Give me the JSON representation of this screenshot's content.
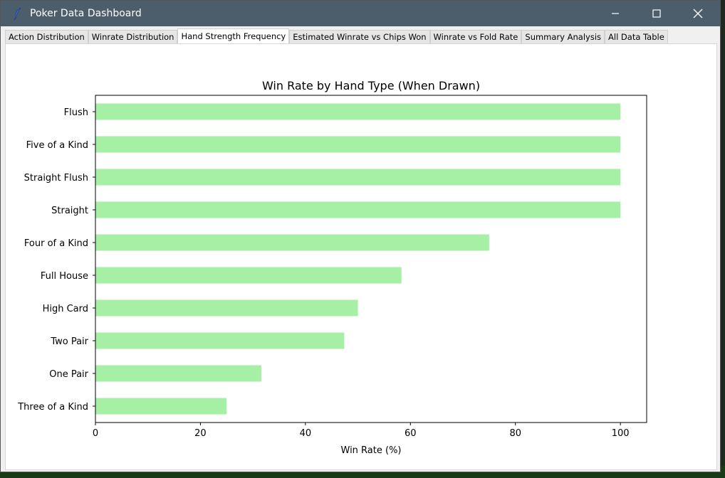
{
  "window": {
    "title": "Poker Data Dashboard",
    "icon": "feather-icon"
  },
  "tabs": [
    {
      "label": "Action Distribution",
      "active": false
    },
    {
      "label": "Winrate Distribution",
      "active": false
    },
    {
      "label": "Hand Strength Frequency",
      "active": true
    },
    {
      "label": "Estimated Winrate vs Chips Won",
      "active": false
    },
    {
      "label": "Winrate vs Fold Rate",
      "active": false
    },
    {
      "label": "Summary Analysis",
      "active": false
    },
    {
      "label": "All Data Table",
      "active": false
    }
  ],
  "colors": {
    "titlebar": "#4c5d6b",
    "bar": "#a6f0a6"
  },
  "chart_data": {
    "type": "bar",
    "orientation": "horizontal",
    "title": "Win Rate by Hand Type (When Drawn)",
    "xlabel": "Win Rate (%)",
    "ylabel": "",
    "xlim": [
      0,
      105
    ],
    "xticks": [
      0,
      20,
      40,
      60,
      80,
      100
    ],
    "grid": false,
    "categories": [
      "Flush",
      "Five of a Kind",
      "Straight Flush",
      "Straight",
      "Four of a Kind",
      "Full House",
      "High Card",
      "Two Pair",
      "One Pair",
      "Three of a Kind"
    ],
    "values": [
      100,
      100,
      100,
      100,
      75,
      58.3,
      50,
      47.4,
      31.6,
      25
    ]
  }
}
